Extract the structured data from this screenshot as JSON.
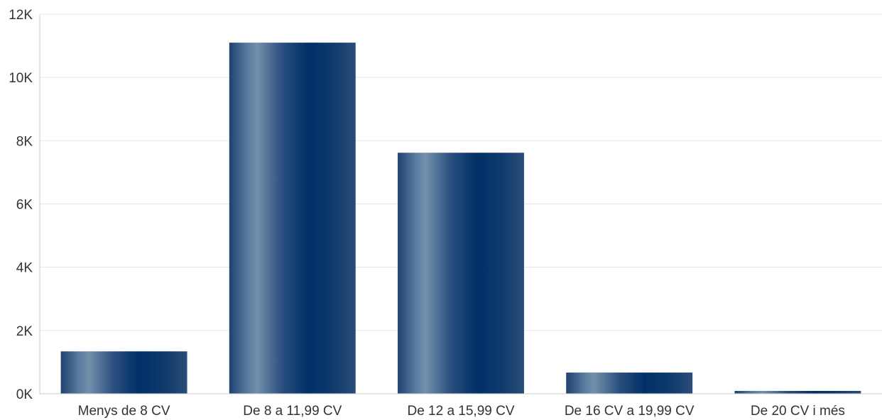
{
  "chart_data": {
    "type": "bar",
    "title": "",
    "xlabel": "",
    "ylabel": "",
    "categories": [
      "Menys de 8 CV",
      "De 8 a 11,99 CV",
      "De 12 a 15,99 CV",
      "De 16 CV a 19,99 CV",
      "De 20 CV i més"
    ],
    "values": [
      1340,
      11100,
      7620,
      670,
      90
    ],
    "ylim": [
      0,
      12000
    ],
    "yticks": [
      {
        "value": 0,
        "label": "0K"
      },
      {
        "value": 2000,
        "label": "2K"
      },
      {
        "value": 4000,
        "label": "4K"
      },
      {
        "value": 6000,
        "label": "6K"
      },
      {
        "value": 8000,
        "label": "8K"
      },
      {
        "value": 10000,
        "label": "10K"
      },
      {
        "value": 12000,
        "label": "12K"
      }
    ],
    "grid": true,
    "legend": "none",
    "colors": {
      "bar_dark": "#012f67",
      "bar_light": "#7390ad",
      "grid": "#e6e6e6",
      "axis": "#cccccc",
      "text": "#333333"
    }
  }
}
